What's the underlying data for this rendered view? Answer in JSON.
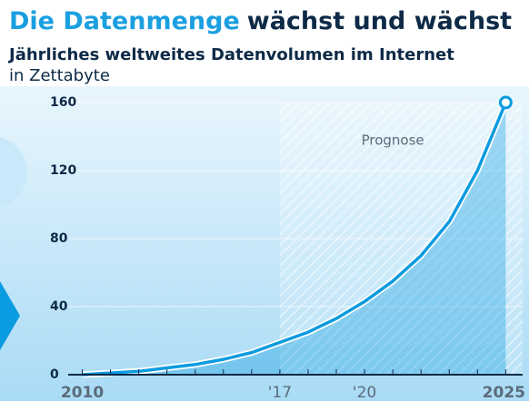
{
  "chart_data": {
    "type": "area",
    "title": {
      "highlight": "Die Datenmenge",
      "rest": "wächst und wächst"
    },
    "subtitle": "Jährliches weltweites Datenvolumen im Internet",
    "unit": "in Zettabyte",
    "annotation": "Prognose",
    "forecast_from": 2017,
    "x": [
      2010,
      2011,
      2012,
      2013,
      2014,
      2015,
      2016,
      2017,
      2018,
      2019,
      2020,
      2021,
      2022,
      2023,
      2024,
      2025
    ],
    "series": [
      {
        "name": "Datenvolumen",
        "color": "#0a9be0",
        "values": [
          0,
          1,
          2,
          4,
          6,
          9,
          13,
          19,
          25,
          33,
          43,
          55,
          70,
          90,
          120,
          160
        ]
      }
    ],
    "xlim": [
      2009.5,
      2025.6
    ],
    "xticks": [
      2010,
      {
        "value": 2017,
        "label": "'17"
      },
      {
        "value": 2020,
        "label": "'20"
      },
      2025
    ],
    "xminor_ticks": [
      2011,
      2012,
      2013,
      2014,
      2015,
      2016,
      2018,
      2019,
      2021,
      2022,
      2023,
      2024
    ],
    "ylim": [
      0,
      160
    ],
    "yticks": [
      0,
      40,
      80,
      120,
      160
    ],
    "grid": true
  }
}
